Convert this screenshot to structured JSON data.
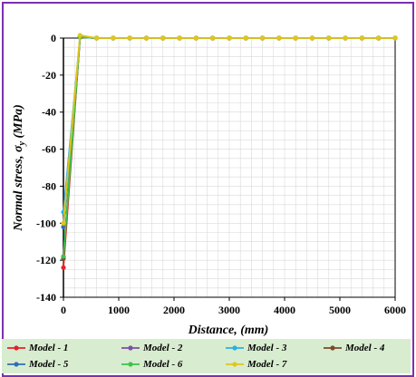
{
  "chart_data": {
    "type": "line",
    "title": "",
    "xlabel": "Distance, (mm)",
    "ylabel": "Normal stress, σ",
    "ylabel_sub": "y",
    "ylabel_unit": " (MPa)",
    "xlim": [
      0,
      6000
    ],
    "ylim": [
      -140,
      0
    ],
    "xticks": [
      0,
      1000,
      2000,
      3000,
      4000,
      5000,
      6000
    ],
    "yticks": [
      0,
      -20,
      -40,
      -60,
      -80,
      -100,
      -120,
      -140
    ],
    "grid": true,
    "legend_position": "bottom",
    "x": [
      0,
      300,
      600,
      900,
      1200,
      1500,
      1800,
      2100,
      2400,
      2700,
      3000,
      3300,
      3600,
      3900,
      4200,
      4500,
      4800,
      5100,
      5400,
      5700,
      6000
    ],
    "series": [
      {
        "name": "Model - 1",
        "color": "#e8202a",
        "values": [
          -124,
          0.5,
          0,
          0,
          0,
          0,
          0,
          0,
          0,
          0,
          0,
          0,
          0,
          0,
          0,
          0,
          0,
          0,
          0,
          0,
          0
        ]
      },
      {
        "name": "Model - 2",
        "color": "#7a4fa8",
        "values": [
          -118,
          0.5,
          0,
          0,
          0,
          0,
          0,
          0,
          0,
          0,
          0,
          0,
          0,
          0,
          0,
          0,
          0,
          0,
          0,
          0,
          0
        ]
      },
      {
        "name": "Model - 3",
        "color": "#2bb0e0",
        "values": [
          -94,
          0.5,
          0,
          0,
          0,
          0,
          0,
          0,
          0,
          0,
          0,
          0,
          0,
          0,
          0,
          0,
          0,
          0,
          0,
          0,
          0
        ]
      },
      {
        "name": "Model - 4",
        "color": "#7b4a2b",
        "values": [
          -119,
          0.5,
          0,
          0,
          0,
          0,
          0,
          0,
          0,
          0,
          0,
          0,
          0,
          0,
          0,
          0,
          0,
          0,
          0,
          0,
          0
        ]
      },
      {
        "name": "Model - 5",
        "color": "#2e6fb5",
        "values": [
          -102,
          0.5,
          0,
          0,
          0,
          0,
          0,
          0,
          0,
          0,
          0,
          0,
          0,
          0,
          0,
          0,
          0,
          0,
          0,
          0,
          0
        ]
      },
      {
        "name": "Model - 6",
        "color": "#3ec24a",
        "values": [
          -118,
          0.5,
          0,
          0,
          0,
          0,
          0,
          0,
          0,
          0,
          0,
          0,
          0,
          0,
          0,
          0,
          0,
          0,
          0,
          0,
          0
        ]
      },
      {
        "name": "Model - 7",
        "color": "#e3c51a",
        "values": [
          -100,
          1.5,
          0,
          0,
          0,
          0,
          0,
          0,
          0,
          0,
          0,
          0,
          0,
          0,
          0,
          0,
          0,
          0,
          0,
          0,
          0
        ]
      }
    ]
  },
  "colors": {
    "frame_border": "#7a2fb0",
    "legend_background": "#d8ecd0",
    "grid": "#d9d9d9"
  }
}
